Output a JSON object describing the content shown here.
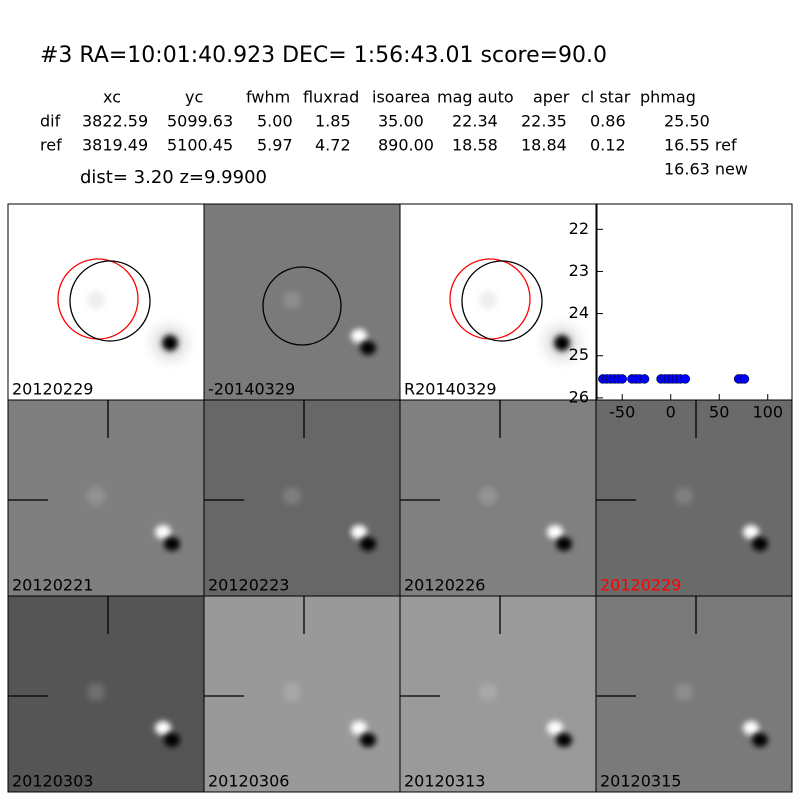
{
  "header": {
    "title": "#3   RA=10:01:40.923 DEC= 1:56:43.01       score=90.0",
    "dist": "dist=  3.20       z=9.9900",
    "new_mag": "16.63 new"
  },
  "table": {
    "columns": [
      "xc",
      "yc",
      "fwhm",
      "fluxrad",
      "isoarea",
      "mag auto",
      "aper",
      "cl star",
      "phmag"
    ],
    "rows": [
      [
        "dif",
        "3822.59",
        "5099.63",
        "5.00",
        "1.85",
        "35.00",
        "22.34",
        "22.35",
        "0.86",
        "25.50"
      ],
      [
        "ref",
        "3819.49",
        "5100.45",
        "5.97",
        "4.72",
        "890.00",
        "18.58",
        "18.84",
        "0.12",
        "16.55 ref"
      ]
    ]
  },
  "panels": [
    {
      "label": "20120229"
    },
    {
      "label": "-20140329"
    },
    {
      "label": "R20140329"
    },
    {
      "label": "20120221"
    },
    {
      "label": "20120223"
    },
    {
      "label": "20120226"
    },
    {
      "label": "20120229",
      "label_color": "#ff0000"
    },
    {
      "label": "20120303"
    },
    {
      "label": "20120306"
    },
    {
      "label": "20120313"
    },
    {
      "label": "20120315"
    }
  ],
  "chart_data": {
    "type": "scatter",
    "color": "#0000ff",
    "x": [
      -70,
      -66,
      -62,
      -58,
      -54,
      -50,
      -40,
      -36,
      -32,
      -27,
      -10,
      -6,
      -2,
      2,
      6,
      10,
      15,
      70,
      73,
      76
    ],
    "values": [
      25.55,
      25.55,
      25.55,
      25.55,
      25.55,
      25.55,
      25.55,
      25.55,
      25.55,
      25.55,
      25.55,
      25.55,
      25.55,
      25.55,
      25.55,
      25.55,
      25.55,
      25.55,
      25.55,
      25.55
    ],
    "xlim": [
      -76,
      125
    ],
    "ylim": [
      26.05,
      21.4
    ],
    "xticks": [
      -50,
      0,
      50,
      100
    ],
    "yticks": [
      22,
      23,
      24,
      25,
      26
    ]
  }
}
